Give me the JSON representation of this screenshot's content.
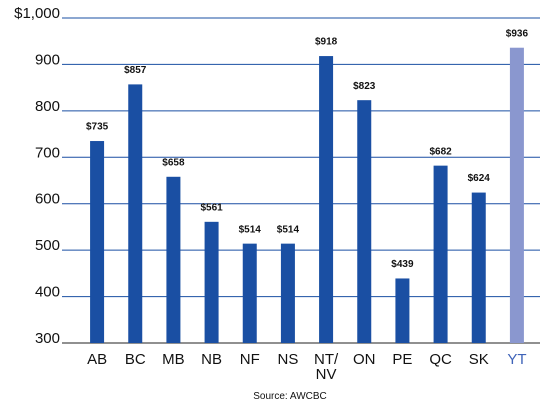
{
  "chart_data": {
    "type": "bar",
    "categories": [
      "AB",
      "BC",
      "MB",
      "NB",
      "NF",
      "NS",
      "NT/\nNV",
      "ON",
      "PE",
      "QC",
      "SK",
      "YT"
    ],
    "values": [
      735,
      857,
      658,
      561,
      514,
      514,
      918,
      823,
      439,
      682,
      624,
      936
    ],
    "value_labels": [
      "$735",
      "$857",
      "$658",
      "$561",
      "$514",
      "$514",
      "$918",
      "$823",
      "$439",
      "$682",
      "$624",
      "$936"
    ],
    "colors": [
      "#1a4fa3",
      "#1a4fa3",
      "#1a4fa3",
      "#1a4fa3",
      "#1a4fa3",
      "#1a4fa3",
      "#1a4fa3",
      "#1a4fa3",
      "#1a4fa3",
      "#1a4fa3",
      "#1a4fa3",
      "#8a97cf"
    ],
    "label_colors": [
      "#111111",
      "#111111",
      "#111111",
      "#111111",
      "#111111",
      "#111111",
      "#111111",
      "#111111",
      "#111111",
      "#111111",
      "#111111",
      "#3f63b8"
    ],
    "ylim": [
      300,
      1000
    ],
    "yticks": [
      {
        "value": 1000,
        "label": "$1,000"
      },
      900,
      800,
      700,
      600,
      500,
      400,
      300
    ],
    "grid": true,
    "source": "Source: AWCBC"
  }
}
